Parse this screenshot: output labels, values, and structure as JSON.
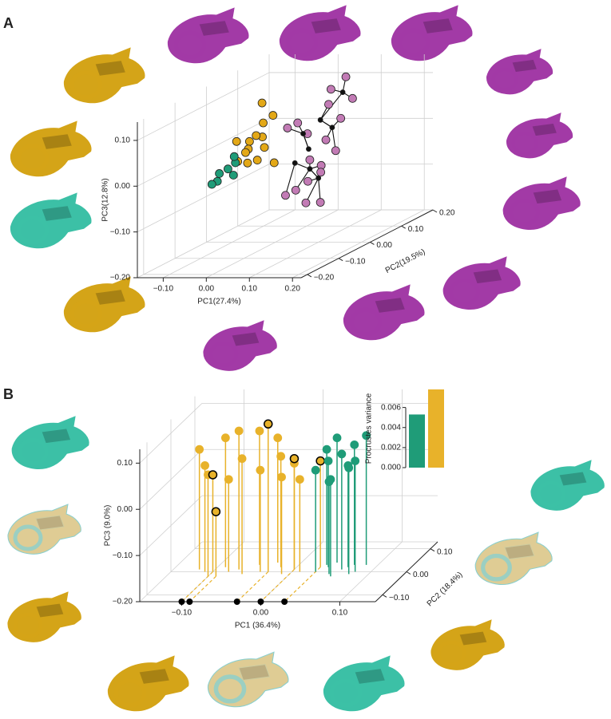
{
  "chart_data": [
    {
      "type": "scatter3d",
      "panel": "A",
      "xlabel": "PC1(27.4%)",
      "ylabel": "PC2(19.5%)",
      "zlabel": "PC3(12.8%)",
      "xlim": [
        -0.16,
        0.22
      ],
      "ylim": [
        -0.22,
        0.2
      ],
      "zlim": [
        -0.2,
        0.14
      ],
      "xticks": [
        {
          "value": -0.1,
          "label": "−0.10"
        },
        {
          "value": 0,
          "label": "0.00"
        },
        {
          "value": 0.1,
          "label": "0.10"
        },
        {
          "value": 0.2,
          "label": "0.20"
        }
      ],
      "yticks": [
        {
          "value": -0.2,
          "label": "−0.20"
        },
        {
          "value": -0.1,
          "label": "−0.10"
        },
        {
          "value": 0,
          "label": "0.00"
        },
        {
          "value": 0.1,
          "label": "0.10"
        },
        {
          "value": 0.2,
          "label": "0.20"
        }
      ],
      "zticks": [
        {
          "value": 0.1,
          "label": "0.10"
        },
        {
          "value": 0,
          "label": "0.00"
        },
        {
          "value": -0.1,
          "label": "−0.10"
        },
        {
          "value": -0.2,
          "label": "−0.20"
        }
      ],
      "grid": true,
      "series": [
        {
          "color": "#c27bb5",
          "x": [
            0.06,
            0.08,
            0.1,
            0.12,
            0.05,
            0.09,
            0.11,
            0.07,
            0.13,
            0.04,
            0.1,
            0.08,
            0.14,
            0.03,
            0.12,
            0.06,
            0.15,
            0.09
          ],
          "y": [
            0.02,
            0,
            0.04,
            0.06,
            -0.03,
            -0.02,
            0.01,
            0.05,
            0.03,
            0.01,
            -0.04,
            0.06,
            0,
            0.03,
            -0.02,
            -0.05,
            0.04,
            0.02
          ],
          "z": [
            0.03,
            -0.02,
            0.12,
            0.14,
            0.06,
            -0.06,
            0.02,
            -0.05,
            0.06,
            -0.09,
            -0.1,
            0.08,
            0,
            0.05,
            -0.04,
            -0.08,
            0.1,
            -0.12
          ]
        },
        {
          "color": "#e3a817",
          "x": [
            -0.06,
            -0.04,
            -0.05,
            -0.03,
            -0.07,
            -0.02,
            -0.05,
            -0.08,
            -0.04,
            -0.01,
            -0.06,
            -0.03,
            -0.09,
            -0.02
          ],
          "y": [
            0,
            0.02,
            -0.02,
            0,
            0.01,
            -0.03,
            0.03,
            -0.01,
            -0.04,
            0.01,
            0.04,
            -0.02,
            0,
            0.02
          ],
          "z": [
            0.02,
            0,
            -0.02,
            0.03,
            0,
            -0.01,
            0.05,
            -0.02,
            0.01,
            -0.03,
            0.09,
            0.04,
            0.02,
            0.07
          ]
        },
        {
          "color": "#1f9c78",
          "x": [
            -0.11,
            -0.12,
            -0.1,
            -0.13,
            -0.09,
            -0.11,
            -0.14
          ],
          "y": [
            0,
            -0.02,
            0.01,
            0,
            -0.01,
            0.02,
            -0.01
          ],
          "z": [
            -0.04,
            -0.06,
            -0.03,
            -0.05,
            -0.05,
            -0.02,
            -0.07
          ]
        },
        {
          "color": "#111111",
          "node": true,
          "x": [
            0.07,
            0.09,
            0.08,
            0.11,
            0.06,
            0.1,
            0.12,
            0.05
          ],
          "y": [
            0.01,
            0.02,
            0,
            0.03,
            -0.02,
            0,
            0.05,
            0.02
          ],
          "z": [
            0,
            0.06,
            -0.04,
            0.04,
            -0.02,
            -0.06,
            0.11,
            0.03
          ]
        }
      ]
    },
    {
      "type": "scatter3d",
      "panel": "B",
      "xlabel": "PC1 (36.4%)",
      "ylabel": "PC2 (18.4%)",
      "zlabel": "PC3 (9.0%)",
      "xlim": [
        -0.153,
        0.145
      ],
      "ylim": [
        -0.13,
        0.13
      ],
      "zlim": [
        -0.2,
        0.13
      ],
      "xticks": [
        {
          "value": -0.1,
          "label": "−0.10"
        },
        {
          "value": 0,
          "label": "0.00"
        },
        {
          "value": 0.1,
          "label": "0.10"
        }
      ],
      "yticks": [
        {
          "value": -0.1,
          "label": "−0.10"
        },
        {
          "value": 0,
          "label": "0.00"
        },
        {
          "value": 0.1,
          "label": "0.10"
        }
      ],
      "zticks": [
        {
          "value": 0.1,
          "label": "0.10"
        },
        {
          "value": 0,
          "label": "0.00"
        },
        {
          "value": -0.1,
          "label": "−0.10"
        },
        {
          "value": -0.2,
          "label": "−0.20"
        }
      ],
      "grid": true,
      "stems": true,
      "series": [
        {
          "color": "#e8b22a",
          "x": [
            -0.11,
            -0.09,
            -0.07,
            -0.05,
            -0.1,
            -0.08,
            -0.06,
            -0.04,
            -0.02,
            -0.01,
            0,
            0.01,
            -0.12,
            -0.03
          ],
          "y": [
            0,
            0.02,
            0.01,
            0.03,
            -0.02,
            0,
            -0.01,
            0,
            0.02,
            -0.01,
            0.01,
            0,
            0.01,
            0.04
          ],
          "z": [
            0.03,
            0.08,
            0.1,
            0.09,
            0.02,
            0,
            0.05,
            0.02,
            0.04,
            0.01,
            0.03,
            0,
            0.06,
            0.07
          ]
        },
        {
          "color": "#e8b22a",
          "edge": "#000000",
          "x": [
            -0.1,
            -0.09,
            -0.03,
            0,
            0.03
          ],
          "y": [
            0,
            -0.02,
            0,
            0.01,
            0.02
          ],
          "z": [
            0.01,
            -0.06,
            0.12,
            0.04,
            0.03
          ]
        },
        {
          "color": "#1f9c78",
          "x": [
            0.03,
            0.04,
            0.05,
            0.06,
            0.07,
            0.08,
            0.045,
            0.055,
            0.065,
            0.075,
            0.035,
            0.085
          ],
          "y": [
            0,
            0.02,
            -0.01,
            0.01,
            0.03,
            0,
            0.04,
            -0.02,
            0.02,
            -0.01,
            0.03,
            0.03
          ],
          "z": [
            0.02,
            0.03,
            0,
            0.05,
            0.06,
            0.04,
            0.07,
            0.01,
            0.02,
            0.03,
            0.05,
            0.08
          ]
        }
      ]
    },
    {
      "type": "bar",
      "ylabel": "Procrustes variance",
      "ylim": [
        0,
        0.0078
      ],
      "yticks": [
        {
          "value": 0,
          "label": "0.000"
        },
        {
          "value": 0.002,
          "label": "0.002"
        },
        {
          "value": 0.004,
          "label": "0.004"
        },
        {
          "value": 0.006,
          "label": "0.006"
        }
      ],
      "values": [
        0.0053,
        0.0078
      ],
      "colors": [
        "#1f9c78",
        "#e8b22a"
      ]
    }
  ]
}
